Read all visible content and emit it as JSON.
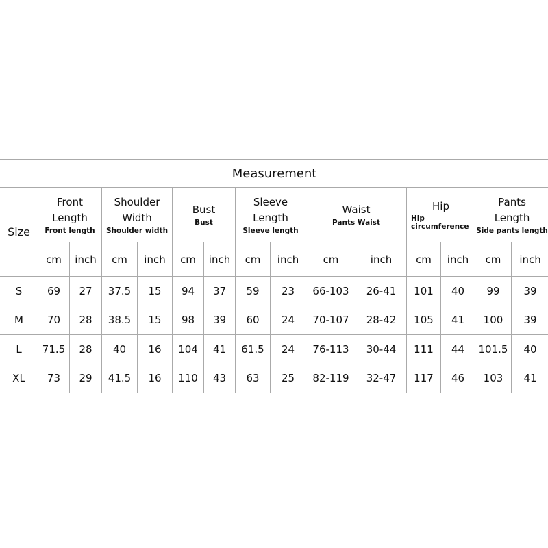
{
  "title": "Measurement",
  "size_label": "Size",
  "columns": [
    {
      "main": "Front Length",
      "sub": "Front length"
    },
    {
      "main": "Shoulder Width",
      "sub": "Shoulder width"
    },
    {
      "main": "Bust",
      "sub": "Bust"
    },
    {
      "main": "Sleeve Length",
      "sub": "Sleeve length"
    },
    {
      "main": "Waist",
      "sub": "Pants Waist"
    },
    {
      "main": "Hip",
      "sub": "Hip circumference"
    },
    {
      "main": "Pants Length",
      "sub": "Side pants length"
    }
  ],
  "units": [
    "cm",
    "inch"
  ],
  "rows": [
    [
      "S",
      "69",
      "27",
      "37.5",
      "15",
      "94",
      "37",
      "59",
      "23",
      "66-103",
      "26-41",
      "101",
      "40",
      "99",
      "39"
    ],
    [
      "M",
      "70",
      "28",
      "38.5",
      "15",
      "98",
      "39",
      "60",
      "24",
      "70-107",
      "28-42",
      "105",
      "41",
      "100",
      "39"
    ],
    [
      "L",
      "71.5",
      "28",
      "40",
      "16",
      "104",
      "41",
      "61.5",
      "24",
      "76-113",
      "30-44",
      "111",
      "44",
      "101.5",
      "40"
    ],
    [
      "XL",
      "73",
      "29",
      "41.5",
      "16",
      "110",
      "43",
      "63",
      "25",
      "82-119",
      "32-47",
      "117",
      "46",
      "103",
      "41"
    ]
  ]
}
